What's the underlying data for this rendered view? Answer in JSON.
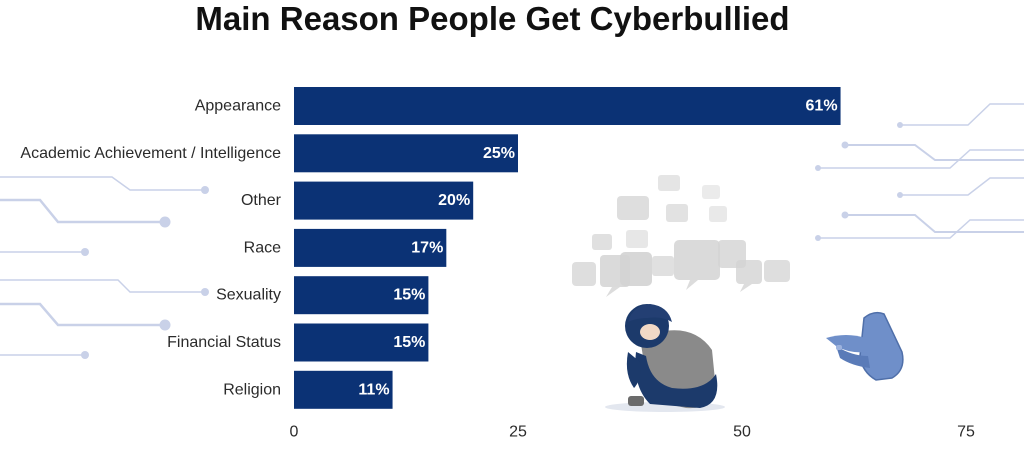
{
  "colors": {
    "bar": "#0B3275",
    "bar_label": "#ffffff",
    "text": "#2b2b2b",
    "title": "#111111",
    "circuit": "#c9d1e8",
    "bubble": "#d8d8d8",
    "figure_dark": "#1c3a6b",
    "figure_gray": "#8a8a8a",
    "hand": "#6f8fc9"
  },
  "illustration": {
    "figure": "sad-person-icon",
    "bubbles": "speech-bubbles-icon",
    "hand": "pointing-hand-icon",
    "circuits": "circuit-lines"
  },
  "chart_data": {
    "type": "bar",
    "orientation": "horizontal",
    "title": "Main Reason People Get Cyberbullied",
    "xlabel": "",
    "ylabel": "",
    "categories": [
      "Appearance",
      "Academic Achievement / Intelligence",
      "Other",
      "Race",
      "Sexuality",
      "Financial Status",
      "Religion"
    ],
    "values": [
      61,
      25,
      20,
      17,
      15,
      15,
      11
    ],
    "value_labels": [
      "61%",
      "25%",
      "20%",
      "17%",
      "15%",
      "15%",
      "11%"
    ],
    "xlim": [
      0,
      75
    ],
    "xticks": [
      0,
      25,
      50,
      75
    ],
    "grid": false,
    "legend": "none"
  }
}
